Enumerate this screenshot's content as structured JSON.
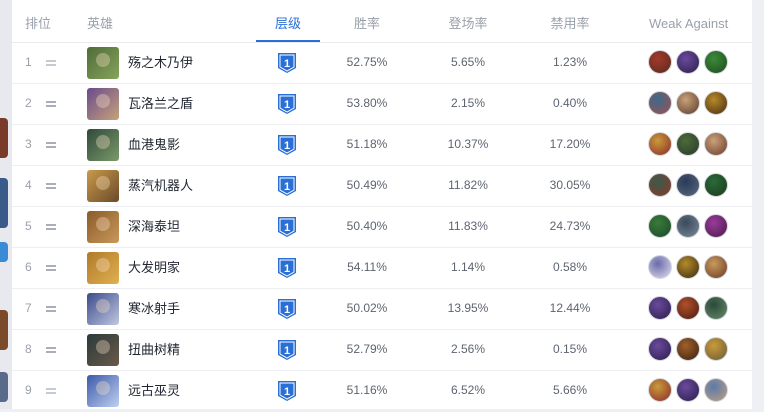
{
  "table": {
    "headers": {
      "rank": "排位",
      "hero": "英雄",
      "tier": "层级",
      "win_rate": "胜率",
      "pick_rate": "登场率",
      "ban_rate": "禁用率",
      "weak_against": "Weak Against"
    },
    "active_sort": "tier",
    "rows": [
      {
        "rank": "1",
        "trend": "flat",
        "name": "殇之木乃伊",
        "tier": "1",
        "win": "52.75%",
        "pick": "5.65%",
        "ban": "1.23%",
        "avatar": [
          "#4f6b3a",
          "#86a45a"
        ],
        "weak": [
          [
            "#a23a2a",
            "#5a2a20"
          ],
          [
            "#6b4a9c",
            "#2b1d4a"
          ],
          [
            "#3c8a3a",
            "#1d4a1d"
          ]
        ]
      },
      {
        "rank": "2",
        "trend": "same",
        "name": "瓦洛兰之盾",
        "tier": "1",
        "win": "53.80%",
        "pick": "2.15%",
        "ban": "0.40%",
        "avatar": [
          "#6a4a8c",
          "#c7a27a"
        ],
        "weak": [
          [
            "#3a6a8a",
            "#a05050"
          ],
          [
            "#c9a27a",
            "#5a3a2a"
          ],
          [
            "#b58a2a",
            "#4a2a10"
          ]
        ]
      },
      {
        "rank": "3",
        "trend": "same",
        "name": "血港鬼影",
        "tier": "1",
        "win": "51.18%",
        "pick": "10.37%",
        "ban": "17.20%",
        "avatar": [
          "#2f4a3a",
          "#7a9a6a"
        ],
        "weak": [
          [
            "#c99a3a",
            "#8a2a2a"
          ],
          [
            "#4a6a3a",
            "#2a3a2a"
          ],
          [
            "#c9a27a",
            "#6a3a2a"
          ]
        ]
      },
      {
        "rank": "4",
        "trend": "same",
        "name": "蒸汽机器人",
        "tier": "1",
        "win": "50.49%",
        "pick": "11.82%",
        "ban": "30.05%",
        "avatar": [
          "#c99a4a",
          "#6a4a2a"
        ],
        "weak": [
          [
            "#3a5a4a",
            "#8a3a2a"
          ],
          [
            "#2a3a5a",
            "#5a6a7a"
          ],
          [
            "#2a6a3a",
            "#1a3a1a"
          ]
        ]
      },
      {
        "rank": "5",
        "trend": "same",
        "name": "深海泰坦",
        "tier": "1",
        "win": "50.40%",
        "pick": "11.83%",
        "ban": "24.73%",
        "avatar": [
          "#8a5a2a",
          "#c99a5a"
        ],
        "weak": [
          [
            "#3a7a3a",
            "#1a4a2a"
          ],
          [
            "#3a4a5a",
            "#7a8a9a"
          ],
          [
            "#9a3a9a",
            "#4a1a4a"
          ]
        ]
      },
      {
        "rank": "6",
        "trend": "same",
        "name": "大发明家",
        "tier": "1",
        "win": "54.11%",
        "pick": "1.14%",
        "ban": "0.58%",
        "avatar": [
          "#b07a2a",
          "#e0b050"
        ],
        "weak": [
          [
            "#6a6aaa",
            "#e0e0f0"
          ],
          [
            "#b58a2a",
            "#3a2a10"
          ],
          [
            "#c99a5a",
            "#6a3a2a"
          ]
        ]
      },
      {
        "rank": "7",
        "trend": "same",
        "name": "寒冰射手",
        "tier": "1",
        "win": "50.02%",
        "pick": "13.95%",
        "ban": "12.44%",
        "avatar": [
          "#3a4a8a",
          "#c0c8e0"
        ],
        "weak": [
          [
            "#6a4a9c",
            "#2b1d4a"
          ],
          [
            "#b0502a",
            "#4a1a10"
          ],
          [
            "#2a4a3a",
            "#6a8a6a"
          ]
        ]
      },
      {
        "rank": "8",
        "trend": "same",
        "name": "扭曲树精",
        "tier": "1",
        "win": "52.79%",
        "pick": "2.56%",
        "ban": "0.15%",
        "avatar": [
          "#2a3a3a",
          "#6a5a4a"
        ],
        "weak": [
          [
            "#6a4a9c",
            "#2b1d4a"
          ],
          [
            "#a0602a",
            "#3a2010"
          ],
          [
            "#c99a3a",
            "#6a5a3a"
          ]
        ]
      },
      {
        "rank": "9",
        "trend": "flat",
        "name": "远古巫灵",
        "tier": "1",
        "win": "51.16%",
        "pick": "6.52%",
        "ban": "5.66%",
        "avatar": [
          "#3a5aaa",
          "#c0d0f0"
        ],
        "weak": [
          [
            "#c99a3a",
            "#8a2a2a"
          ],
          [
            "#6a4a9c",
            "#2b1d4a"
          ],
          [
            "#5a7aaa",
            "#c0a080"
          ]
        ]
      }
    ]
  },
  "colors": {
    "accent": "#2a6fd6",
    "tier_badge": "#2a6fd6"
  }
}
